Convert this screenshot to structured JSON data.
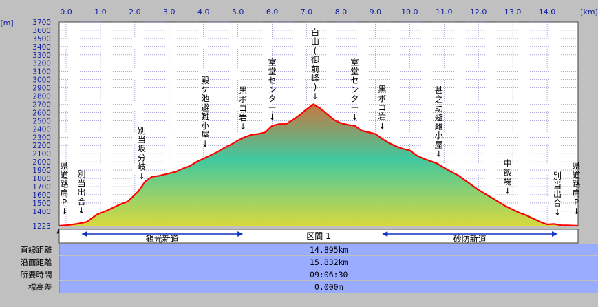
{
  "chart_data": {
    "type": "area",
    "x_unit": "[km]",
    "y_unit": "[m]",
    "xlim": [
      -0.2,
      14.9
    ],
    "ylim": [
      1223,
      3700
    ],
    "x_ticks": [
      "0.0",
      "1.0",
      "2.0",
      "3.0",
      "4.0",
      "5.0",
      "6.0",
      "7.0",
      "8.0",
      "9.0",
      "10.0",
      "11.0",
      "12.0",
      "13.0",
      "14.0"
    ],
    "x_tick_values": [
      0,
      1,
      2,
      3,
      4,
      5,
      6,
      7,
      8,
      9,
      10,
      11,
      12,
      13,
      14
    ],
    "y_ticks": [
      "3700",
      "3600",
      "3500",
      "3400",
      "3300",
      "3200",
      "3100",
      "3000",
      "2900",
      "2800",
      "2700",
      "2600",
      "2500",
      "2400",
      "2300",
      "2200",
      "2100",
      "2000",
      "1900",
      "1800",
      "1700",
      "1600",
      "1500",
      "1400"
    ],
    "y_tick_values": [
      3700,
      3600,
      3500,
      3400,
      3300,
      3200,
      3100,
      3000,
      2900,
      2800,
      2700,
      2600,
      2500,
      2400,
      2300,
      2200,
      2100,
      2000,
      1900,
      1800,
      1700,
      1600,
      1500,
      1400
    ],
    "y_min_label": "1223",
    "grid": true,
    "series": [
      {
        "x": [
          -0.2,
          0,
          0.3,
          0.6,
          0.9,
          1.2,
          1.5,
          1.8,
          2.1,
          2.3,
          2.5,
          2.7,
          2.9,
          3.2,
          3.4,
          3.6,
          3.8,
          4.0,
          4.2,
          4.4,
          4.6,
          4.8,
          5.0,
          5.2,
          5.4,
          5.6,
          5.8,
          6.0,
          6.2,
          6.4,
          6.6,
          6.8,
          7.0,
          7.2,
          7.4,
          7.6,
          7.8,
          8.0,
          8.2,
          8.4,
          8.6,
          8.8,
          9.0,
          9.2,
          9.4,
          9.6,
          9.8,
          10.0,
          10.2,
          10.4,
          10.6,
          10.8,
          11.0,
          11.2,
          11.4,
          11.6,
          11.8,
          12.0,
          12.2,
          12.4,
          12.6,
          12.8,
          13.0,
          13.2,
          13.4,
          13.6,
          13.8,
          14.0,
          14.2,
          14.4,
          14.6,
          14.9
        ],
        "y": [
          1223,
          1230,
          1245,
          1270,
          1360,
          1410,
          1470,
          1520,
          1640,
          1760,
          1820,
          1830,
          1850,
          1880,
          1920,
          1950,
          2000,
          2040,
          2080,
          2120,
          2170,
          2210,
          2260,
          2300,
          2330,
          2340,
          2360,
          2440,
          2460,
          2460,
          2510,
          2570,
          2640,
          2700,
          2650,
          2580,
          2510,
          2470,
          2450,
          2440,
          2380,
          2360,
          2340,
          2280,
          2230,
          2190,
          2160,
          2140,
          2080,
          2040,
          2010,
          1980,
          1930,
          1880,
          1840,
          1780,
          1720,
          1660,
          1610,
          1560,
          1510,
          1460,
          1420,
          1380,
          1350,
          1310,
          1270,
          1240,
          1245,
          1230,
          1228,
          1223
        ]
      }
    ],
    "annotations": [
      {
        "x": -0.05,
        "lines": [
          "県",
          "道",
          "路",
          "肩",
          "P"
        ],
        "bottom_elev": 1330
      },
      {
        "x": 0.45,
        "lines": [
          "別",
          "当",
          "出",
          "合"
        ],
        "bottom_elev": 1340
      },
      {
        "x": 2.2,
        "lines": [
          "別",
          "当",
          "坂",
          "分",
          "岐"
        ],
        "bottom_elev": 1760
      },
      {
        "x": 4.05,
        "lines": [
          "殿",
          "ケ",
          "池",
          "避",
          "難",
          "小",
          "屋"
        ],
        "bottom_elev": 2150
      },
      {
        "x": 5.15,
        "lines": [
          "黒",
          "ボ",
          "コ",
          "岩"
        ],
        "bottom_elev": 2360
      },
      {
        "x": 6.0,
        "lines": [
          "室",
          "堂",
          "セ",
          "ン",
          "タ",
          "ー"
        ],
        "bottom_elev": 2480
      },
      {
        "x": 7.25,
        "lines": [
          "白",
          "山",
          "(",
          "御",
          "前",
          "峰",
          ")"
        ],
        "bottom_elev": 2730
      },
      {
        "x": 8.4,
        "lines": [
          "室",
          "堂",
          "セ",
          "ン",
          "タ",
          "ー"
        ],
        "bottom_elev": 2480
      },
      {
        "x": 9.2,
        "lines": [
          "黒",
          "ボ",
          "コ",
          "岩"
        ],
        "bottom_elev": 2370
      },
      {
        "x": 10.85,
        "lines": [
          "甚",
          "之",
          "助",
          "避",
          "難",
          "小",
          "屋"
        ],
        "bottom_elev": 2030
      },
      {
        "x": 12.85,
        "lines": [
          "中",
          "飯",
          "場"
        ],
        "bottom_elev": 1580
      },
      {
        "x": 14.3,
        "lines": [
          "別",
          "当",
          "出",
          "合"
        ],
        "bottom_elev": 1320
      },
      {
        "x": 14.85,
        "lines": [
          "県",
          "道",
          "路",
          "肩",
          "P"
        ],
        "bottom_elev": 1330
      }
    ],
    "arrow_glyph": "↓",
    "start_marker": "▲",
    "sections": [
      {
        "name": "観光新道",
        "x0": 0.45,
        "x1": 5.15
      },
      {
        "name": "区間 1",
        "x0": null,
        "x1": null
      },
      {
        "name": "砂防新道",
        "x0": 9.2,
        "x1": 14.3
      }
    ],
    "colors": {
      "line": "#ff0000",
      "plot_bg": "#ffffff",
      "grid": "#7070c0",
      "fill_top": "#c87840",
      "fill_mid": "#40c8a0",
      "fill_bottom": "#d8d840"
    }
  },
  "stats": [
    {
      "label": "直線距離",
      "value": "14.895km"
    },
    {
      "label": "沿面距離",
      "value": "15.832km"
    },
    {
      "label": "所要時間",
      "value": "09:06:30"
    },
    {
      "label": "標高差",
      "value": "0.000m"
    }
  ]
}
